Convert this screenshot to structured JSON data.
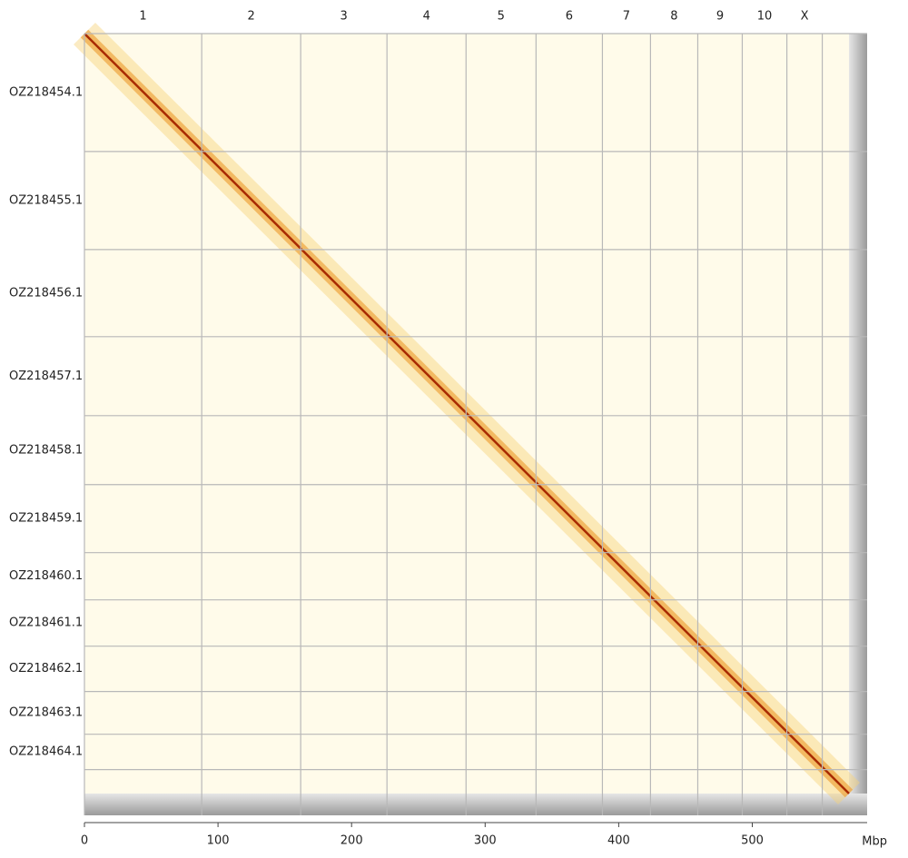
{
  "chart_data": {
    "type": "heatmap",
    "x_labels": [
      "1",
      "2",
      "3",
      "4",
      "5",
      "6",
      "7",
      "8",
      "9",
      "10",
      "X"
    ],
    "y_labels": [
      "OZ218454.1",
      "OZ218455.1",
      "OZ218456.1",
      "OZ218457.1",
      "OZ218458.1",
      "OZ218459.1",
      "OZ218460.1",
      "OZ218461.1",
      "OZ218462.1",
      "OZ218463.1",
      "OZ218464.1"
    ],
    "x_boundaries": [
      0,
      87.8,
      161.9,
      226.5,
      285.7,
      338.1,
      387.8,
      423.8,
      459.2,
      492.5,
      525.9,
      552.4
    ],
    "y_boundaries": [
      0,
      88.4,
      161.9,
      227.2,
      286.4,
      338.1,
      389.1,
      424.5,
      459.2,
      493.2,
      525.2,
      551.7
    ],
    "xlabel": "Mbp",
    "xlim": [
      0,
      586
    ],
    "ylim": [
      0,
      586
    ],
    "xticks": [
      0,
      100,
      200,
      300,
      400,
      500
    ]
  }
}
